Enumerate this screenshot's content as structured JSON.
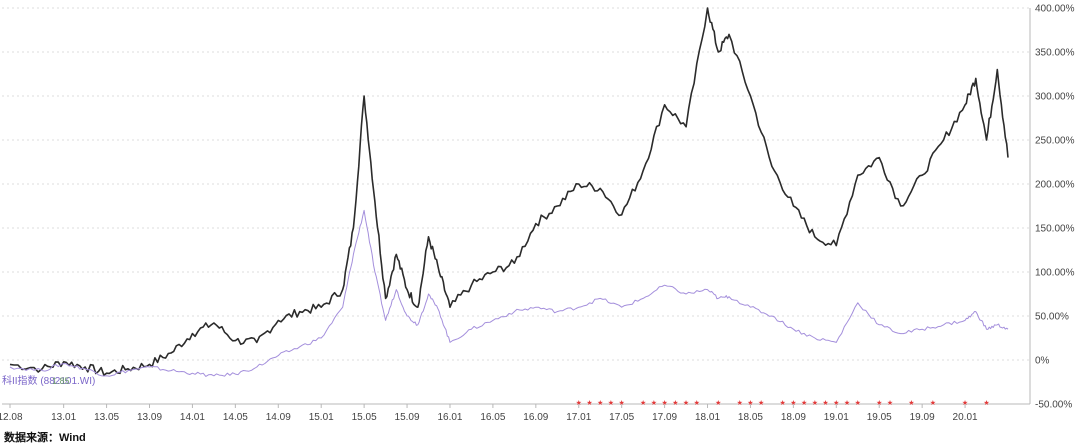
{
  "chart_data": {
    "type": "line",
    "title": "",
    "xlabel": "",
    "ylabel": "",
    "x_ticks": [
      "12.08",
      "13.01",
      "13.05",
      "13.09",
      "14.01",
      "14.05",
      "14.09",
      "15.01",
      "15.05",
      "15.09",
      "16.01",
      "16.05",
      "16.09",
      "17.01",
      "17.05",
      "17.09",
      "18.01",
      "18.05",
      "18.09",
      "19.01",
      "19.05",
      "19.09",
      "20.01"
    ],
    "y_ticks": [
      "400.00%",
      "350.00%",
      "300.00%",
      "250.00%",
      "200.00%",
      "150.00%",
      "100.00%",
      "50.00%",
      "0%",
      "-50.00%"
    ],
    "ylim": [
      -50,
      400
    ],
    "grid": true,
    "legend_label": "科II指数 (882101.WI)",
    "legend_value": "1.85",
    "series": [
      {
        "color": "#2b2b2b",
        "x": [
          "2012.08",
          "2012.11",
          "2013.01",
          "2013.03",
          "2013.05",
          "2013.07",
          "2013.09",
          "2013.11",
          "2014.01",
          "2014.03",
          "2014.05",
          "2014.07",
          "2014.09",
          "2014.11",
          "2015.01",
          "2015.03",
          "2015.04",
          "2015.05",
          "2015.06",
          "2015.07",
          "2015.08",
          "2015.09",
          "2015.10",
          "2015.11",
          "2015.12",
          "2016.01",
          "2016.03",
          "2016.05",
          "2016.07",
          "2016.09",
          "2016.11",
          "2017.01",
          "2017.03",
          "2017.05",
          "2017.07",
          "2017.09",
          "2017.11",
          "2018.01",
          "2018.02",
          "2018.03",
          "2018.05",
          "2018.07",
          "2018.09",
          "2018.11",
          "2019.01",
          "2019.03",
          "2019.05",
          "2019.07",
          "2019.09",
          "2019.11",
          "2020.01",
          "2020.02",
          "2020.03",
          "2020.04",
          "2020.05"
        ],
        "values": [
          -5,
          -10,
          -2,
          -8,
          -15,
          -10,
          -5,
          8,
          30,
          42,
          22,
          20,
          45,
          55,
          60,
          80,
          150,
          300,
          180,
          70,
          120,
          80,
          60,
          140,
          100,
          60,
          85,
          100,
          110,
          155,
          175,
          200,
          195,
          165,
          215,
          290,
          265,
          400,
          350,
          370,
          300,
          220,
          175,
          140,
          130,
          210,
          230,
          175,
          210,
          250,
          290,
          320,
          250,
          330,
          230
        ],
        "note": ""
      },
      {
        "color": "#a48fdc",
        "x": [
          "2012.08",
          "2012.11",
          "2013.01",
          "2013.03",
          "2013.05",
          "2013.07",
          "2013.09",
          "2013.11",
          "2014.01",
          "2014.03",
          "2014.05",
          "2014.07",
          "2014.09",
          "2014.11",
          "2015.01",
          "2015.03",
          "2015.04",
          "2015.05",
          "2015.06",
          "2015.07",
          "2015.08",
          "2015.09",
          "2015.10",
          "2015.11",
          "2015.12",
          "2016.01",
          "2016.03",
          "2016.05",
          "2016.07",
          "2016.09",
          "2016.11",
          "2017.01",
          "2017.03",
          "2017.05",
          "2017.07",
          "2017.09",
          "2017.11",
          "2018.01",
          "2018.02",
          "2018.03",
          "2018.05",
          "2018.07",
          "2018.09",
          "2018.11",
          "2019.01",
          "2019.03",
          "2019.05",
          "2019.07",
          "2019.09",
          "2019.11",
          "2020.01",
          "2020.02",
          "2020.03",
          "2020.04",
          "2020.05"
        ],
        "values": [
          -8,
          -12,
          -4,
          -10,
          -18,
          -12,
          -8,
          -12,
          -15,
          -18,
          -16,
          -8,
          5,
          15,
          25,
          60,
          120,
          170,
          100,
          45,
          80,
          50,
          40,
          75,
          55,
          20,
          35,
          45,
          55,
          60,
          55,
          60,
          70,
          60,
          70,
          85,
          75,
          80,
          70,
          72,
          60,
          50,
          35,
          25,
          20,
          65,
          40,
          30,
          35,
          40,
          45,
          55,
          35,
          40,
          35
        ],
        "note": ""
      }
    ],
    "markers": {
      "symbol": "★",
      "color": "#e23b3b",
      "x": [
        "2017.01",
        "2017.02",
        "2017.03",
        "2017.04",
        "2017.05",
        "2017.07",
        "2017.08",
        "2017.09",
        "2017.10",
        "2017.11",
        "2017.12",
        "2018.02",
        "2018.04",
        "2018.05",
        "2018.06",
        "2018.08",
        "2018.09",
        "2018.10",
        "2018.11",
        "2018.12",
        "2019.01",
        "2019.02",
        "2019.03",
        "2019.05",
        "2019.06",
        "2019.08",
        "2019.10",
        "2020.01",
        "2020.03"
      ]
    }
  },
  "source_text": "数据来源：Wind"
}
